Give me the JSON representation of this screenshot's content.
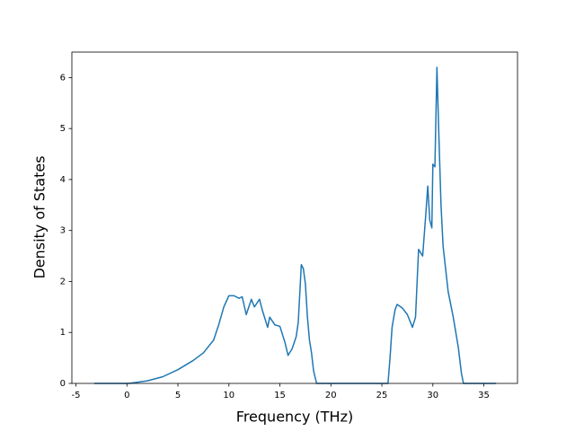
{
  "chart_data": {
    "type": "line",
    "xlabel": "Frequency (THz)",
    "ylabel": "Density of States",
    "color": "#1f77b4",
    "x": [
      -3.2,
      0.2,
      2,
      3.5,
      5,
      6.5,
      7.5,
      8.5,
      9,
      9.5,
      10,
      10.5,
      11,
      11.3,
      11.7,
      12.2,
      12.5,
      13,
      13.3,
      13.8,
      14,
      14.5,
      15,
      15.5,
      15.8,
      16.2,
      16.6,
      16.8,
      17.1,
      17.3,
      17.5,
      17.7,
      17.9,
      18.1,
      18.3,
      18.6,
      25.6,
      25.8,
      26,
      26.3,
      26.5,
      27,
      27.5,
      28,
      28.3,
      28.6,
      29,
      29.3,
      29.5,
      29.7,
      29.9,
      30,
      30.2,
      30.4,
      30.6,
      30.8,
      31,
      31.5,
      32,
      32.5,
      32.8,
      33,
      36.2
    ],
    "values": [
      0,
      0,
      0.05,
      0.13,
      0.27,
      0.45,
      0.6,
      0.85,
      1.15,
      1.5,
      1.72,
      1.72,
      1.67,
      1.7,
      1.35,
      1.65,
      1.5,
      1.65,
      1.42,
      1.1,
      1.3,
      1.15,
      1.12,
      0.8,
      0.55,
      0.68,
      0.92,
      1.2,
      2.33,
      2.25,
      1.95,
      1.3,
      0.85,
      0.6,
      0.25,
      0,
      0,
      0.5,
      1.1,
      1.45,
      1.55,
      1.48,
      1.35,
      1.1,
      1.3,
      2.63,
      2.5,
      3.3,
      3.87,
      3.2,
      3.05,
      4.3,
      4.25,
      6.2,
      4.8,
      3.5,
      2.7,
      1.8,
      1.3,
      0.7,
      0.2,
      0,
      0
    ],
    "xlim": [
      -5.4,
      38.3
    ],
    "xticks": [
      -5,
      0,
      5,
      10,
      15,
      20,
      25,
      30,
      35
    ],
    "ylim": [
      0,
      6.5
    ],
    "yticks": [
      0,
      1,
      2,
      3,
      4,
      5,
      6
    ]
  }
}
